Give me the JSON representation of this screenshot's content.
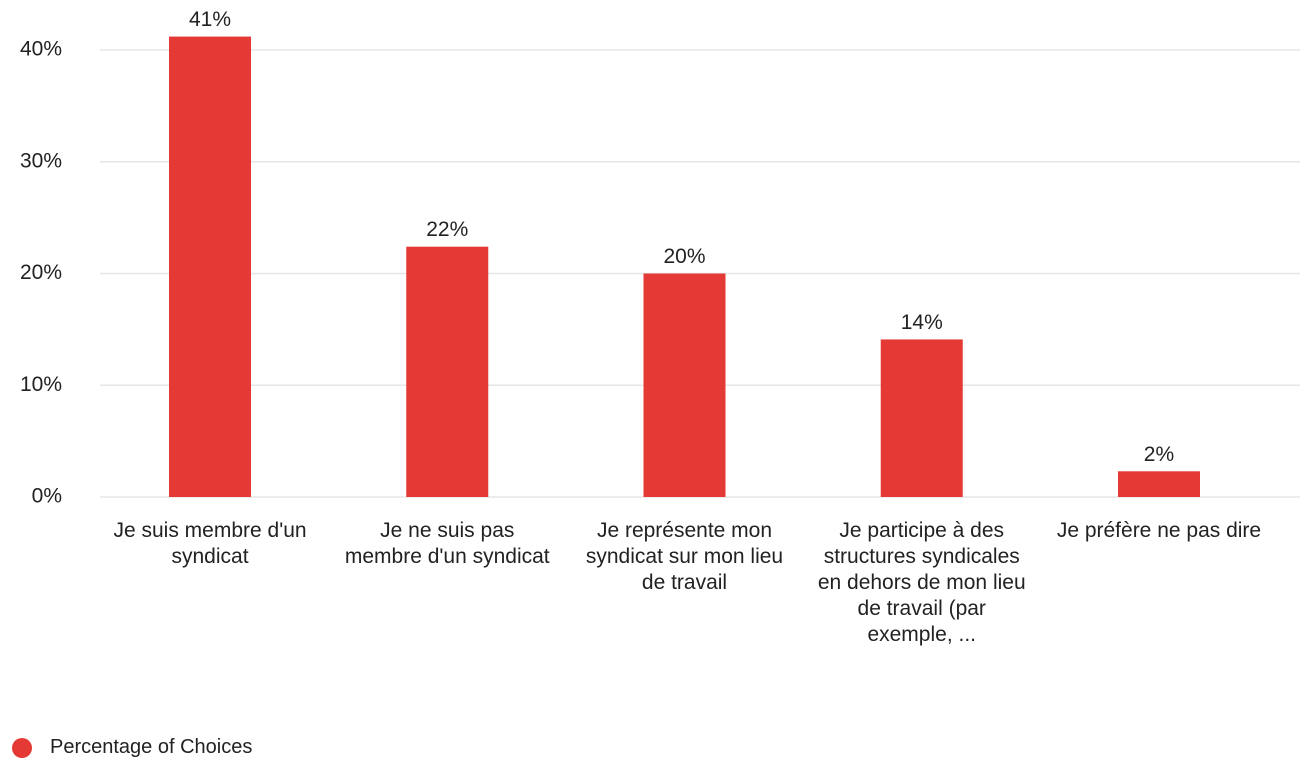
{
  "chart_data": {
    "type": "bar",
    "categories": [
      "Je suis membre d'un syndicat",
      "Je ne suis pas membre d'un syndicat",
      "Je représente mon syndicat sur mon lieu de travail",
      "Je participe à des structures syndicales en dehors de mon lieu de travail (par exemple, ...",
      "Je préfère ne pas dire"
    ],
    "series": [
      {
        "name": "Percentage of Choices",
        "color": "#e53935",
        "values": [
          41.2,
          22.4,
          20,
          14.1,
          2.3
        ],
        "value_labels": [
          "41%",
          "22%",
          "20%",
          "14%",
          "2%"
        ]
      }
    ],
    "ylim": [
      0,
      44
    ],
    "yticks": [
      {
        "value": 0,
        "label": "0%"
      },
      {
        "value": 10,
        "label": "10%"
      },
      {
        "value": 20,
        "label": "20%"
      },
      {
        "value": 30,
        "label": "30%"
      },
      {
        "value": 40,
        "label": "40%"
      }
    ],
    "grid": true,
    "legend": "bottom-left"
  }
}
